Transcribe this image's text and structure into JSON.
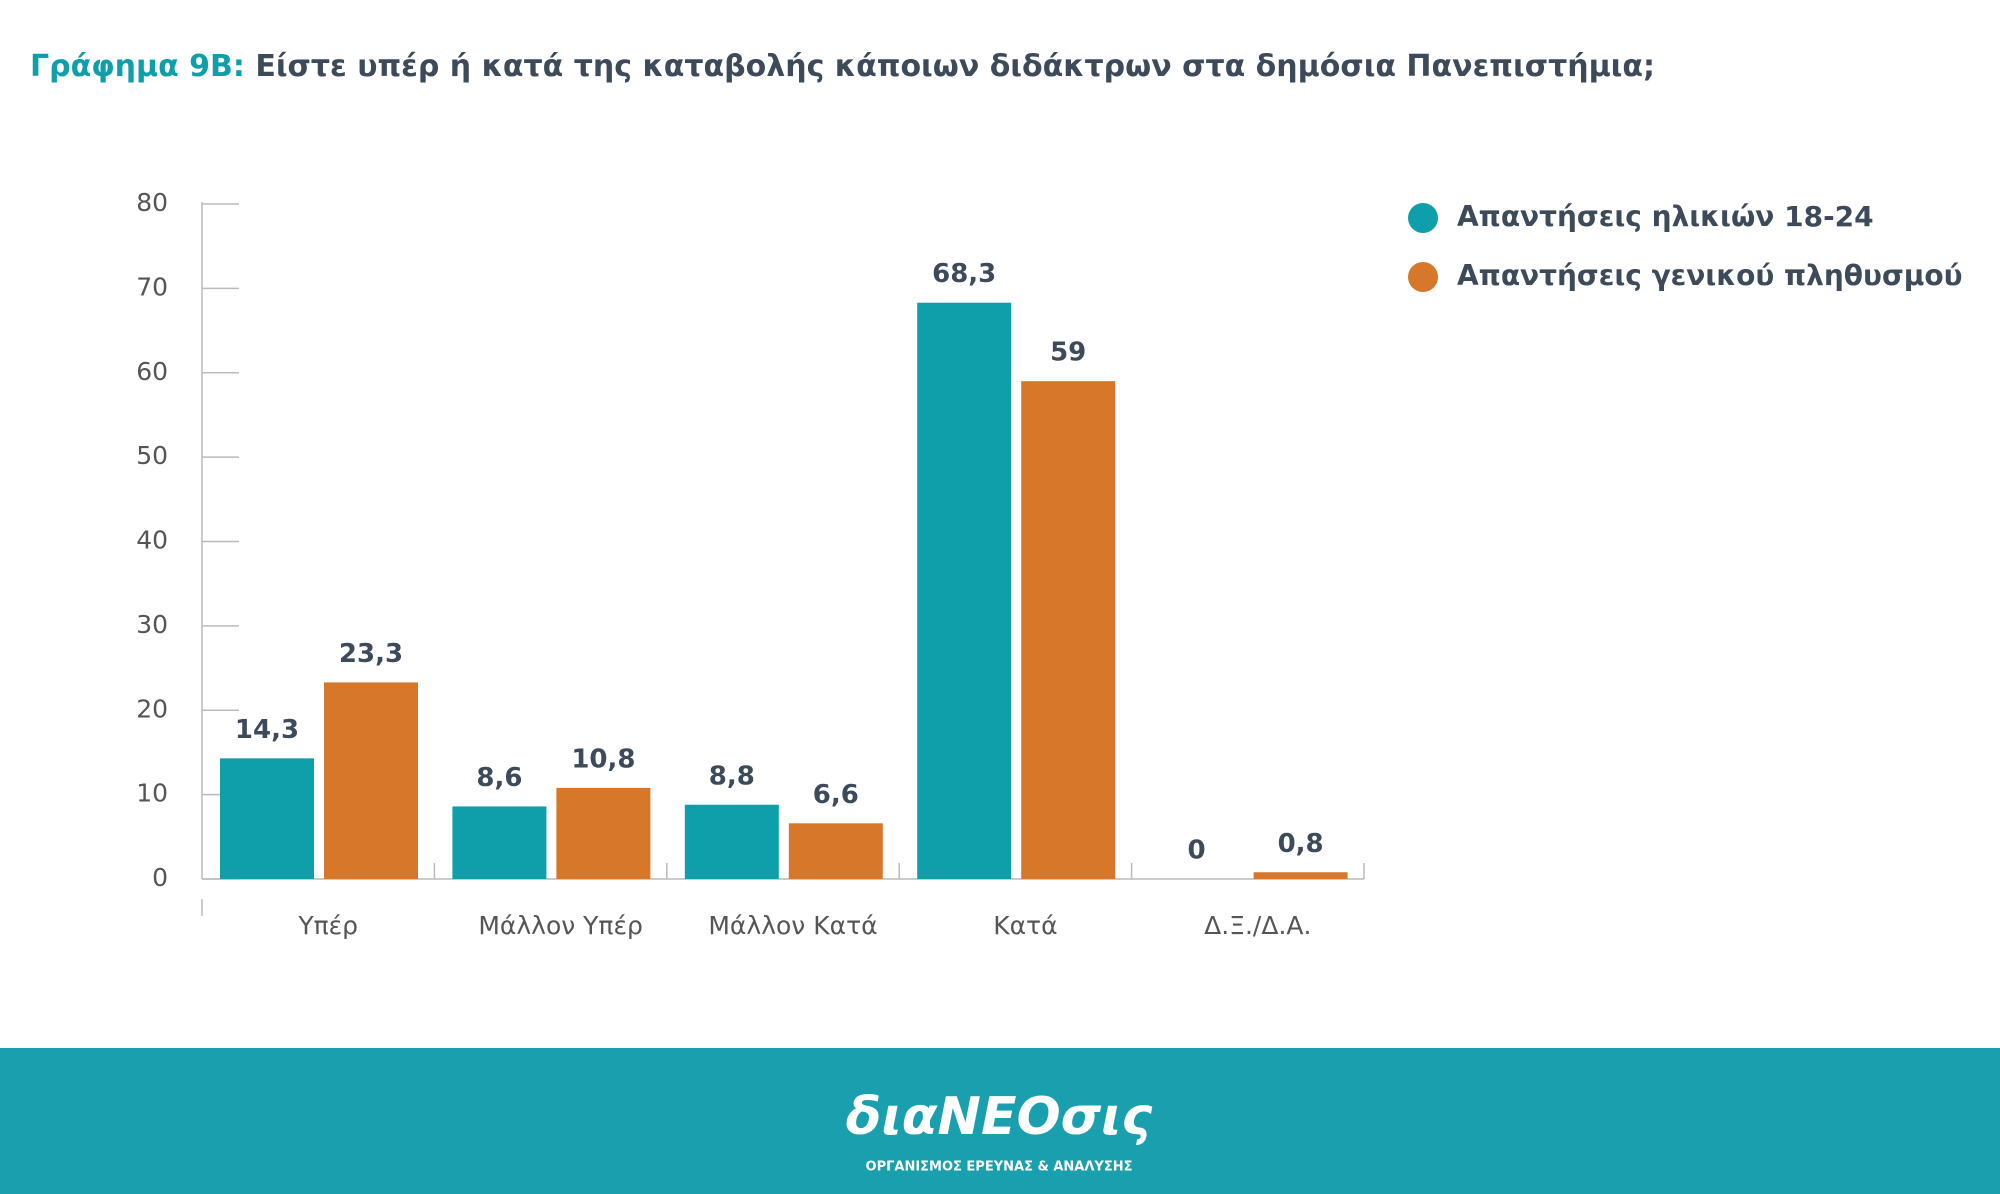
{
  "chart_data": {
    "type": "bar",
    "title_prefix": "Γράφημα 9B:",
    "title": "Είστε υπέρ ή κατά της καταβολής κάποιων διδάκτρων στα δημόσια Πανεπιστήμια;",
    "categories": [
      "Υπέρ",
      "Μάλλον Υπέρ",
      "Μάλλον Κατά",
      "Κατά",
      "Δ.Ξ./Δ.Α."
    ],
    "series": [
      {
        "name": "Απαντήσεις ηλικιών 18-24",
        "color": "#0f9fab",
        "values": [
          14.3,
          8.6,
          8.8,
          68.3,
          0
        ],
        "value_labels": [
          "14,3",
          "8,6",
          "8,8",
          "68,3",
          "0"
        ]
      },
      {
        "name": "Απαντήσεις γενικού πληθυσμού",
        "color": "#d6772a",
        "values": [
          23.3,
          10.8,
          6.6,
          59,
          0.8
        ],
        "value_labels": [
          "23,3",
          "10,8",
          "6,6",
          "59",
          "0,8"
        ]
      }
    ],
    "ylim": [
      0,
      80
    ],
    "yticks": [
      0,
      10,
      20,
      30,
      40,
      50,
      60,
      70,
      80
    ],
    "legend": "top-right"
  },
  "footer": {
    "logo": "διαNEOσις",
    "tagline": "ΟΡΓΑΝΙΣΜΟΣ ΕΡΕΥΝΑΣ & ΑΝΑΛΥΣΗΣ"
  }
}
